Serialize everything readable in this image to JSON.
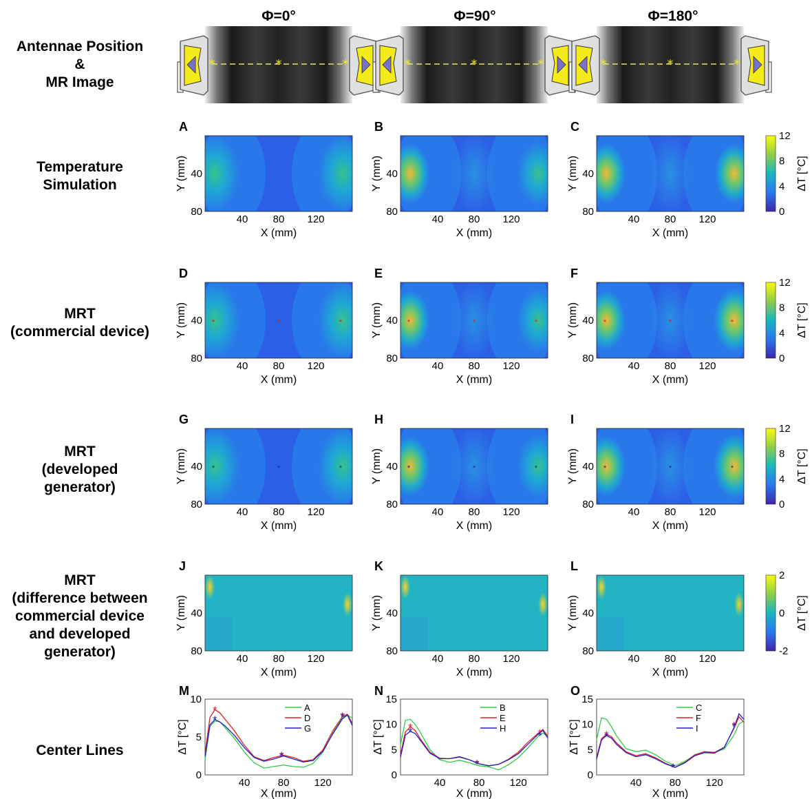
{
  "columns": [
    "Φ=0°",
    "Φ=90°",
    "Φ=180°"
  ],
  "row_labels": [
    [
      "Antennae Position",
      "&",
      "MR Image"
    ],
    [
      "Temperature",
      "Simulation"
    ],
    [
      "MRT",
      "(commercial device)"
    ],
    [
      "MRT",
      "(developed",
      "generator)"
    ],
    [
      "MRT",
      "(difference between",
      "commercial device",
      "and developed",
      "generator)"
    ],
    [
      "Center Lines"
    ]
  ],
  "panel_letters": [
    "A",
    "B",
    "C",
    "D",
    "E",
    "F",
    "G",
    "H",
    "I",
    "J",
    "K",
    "L",
    "M",
    "N",
    "O"
  ],
  "map_axes": {
    "xlabel": "X (mm)",
    "ylabel": "Y (mm)",
    "xticks": [
      "40",
      "80",
      "120"
    ],
    "yticks": [
      "40",
      "80"
    ]
  },
  "colorbars": [
    {
      "ticks": [
        "12",
        "8",
        "4",
        "0"
      ],
      "label": "ΔT [°C]"
    },
    {
      "ticks": [
        "12",
        "8",
        "4",
        "0"
      ],
      "label": "ΔT [°C]"
    },
    {
      "ticks": [
        "12",
        "8",
        "4",
        "0"
      ],
      "label": "ΔT [°C]"
    },
    {
      "ticks": [
        "2",
        "0",
        "-2"
      ],
      "label": "ΔT [°C]"
    }
  ],
  "colors": {
    "sim": "#2ccc4a",
    "commercial": "#e02020",
    "developed": "#2020c8",
    "low": "#3a2ea8",
    "mid": "#27b0b0",
    "high": "#f3e21f"
  },
  "chart_data": [
    {
      "type": "line",
      "xlabel": "X (mm)",
      "ylabel": "ΔT [°C]",
      "xticks": [
        "40",
        "80",
        "120"
      ],
      "yticks": [
        "0",
        "5",
        "10"
      ],
      "ylim": [
        0,
        10
      ],
      "xlim": [
        0,
        150
      ],
      "legend_position": "top-right",
      "series": [
        {
          "name": "A",
          "x": [
            0,
            5,
            10,
            15,
            20,
            30,
            40,
            50,
            60,
            70,
            80,
            90,
            100,
            110,
            120,
            130,
            140,
            145,
            150
          ],
          "y": [
            2.0,
            6.4,
            7.1,
            7.0,
            6.3,
            4.8,
            3.0,
            1.6,
            0.9,
            1.1,
            1.3,
            1.1,
            1.0,
            1.5,
            3.0,
            5.5,
            7.6,
            7.9,
            7.5
          ]
        },
        {
          "name": "D",
          "x": [
            0,
            5,
            10,
            15,
            20,
            30,
            40,
            50,
            60,
            70,
            80,
            90,
            100,
            110,
            120,
            130,
            140,
            145,
            150
          ],
          "y": [
            2.8,
            7.6,
            8.6,
            8.2,
            7.4,
            5.8,
            3.9,
            2.4,
            1.9,
            2.3,
            2.6,
            2.3,
            1.8,
            2.0,
            3.3,
            5.8,
            7.7,
            8.0,
            6.8
          ]
        },
        {
          "name": "G",
          "x": [
            0,
            5,
            10,
            15,
            20,
            30,
            40,
            50,
            60,
            70,
            80,
            90,
            100,
            110,
            120,
            130,
            140,
            145,
            150
          ],
          "y": [
            2.5,
            6.6,
            7.3,
            7.0,
            6.5,
            5.2,
            3.6,
            2.3,
            1.8,
            2.1,
            2.5,
            2.1,
            1.7,
            1.9,
            3.1,
            5.4,
            7.4,
            7.9,
            6.5
          ]
        }
      ],
      "markers": {
        "x": [
          10,
          78,
          140
        ],
        "y_red": [
          8.6,
          2.6,
          7.8
        ],
        "y_blue": [
          7.3,
          2.5,
          7.7
        ]
      }
    },
    {
      "type": "line",
      "xlabel": "X (mm)",
      "ylabel": "ΔT [°C]",
      "xticks": [
        "40",
        "80",
        "120"
      ],
      "yticks": [
        "0",
        "5",
        "10",
        "15"
      ],
      "ylim": [
        0,
        15
      ],
      "xlim": [
        0,
        150
      ],
      "legend_position": "top-right",
      "series": [
        {
          "name": "B",
          "x": [
            0,
            5,
            10,
            15,
            20,
            30,
            40,
            50,
            60,
            70,
            80,
            90,
            100,
            110,
            120,
            130,
            140,
            145,
            150
          ],
          "y": [
            6.0,
            10.8,
            11.0,
            10.0,
            8.5,
            5.0,
            3.0,
            2.5,
            2.9,
            2.4,
            1.8,
            1.6,
            1.0,
            2.0,
            3.4,
            5.4,
            7.6,
            8.3,
            7.6
          ]
        },
        {
          "name": "E",
          "x": [
            0,
            5,
            10,
            15,
            20,
            30,
            40,
            50,
            60,
            70,
            80,
            90,
            100,
            110,
            120,
            130,
            140,
            145,
            150
          ],
          "y": [
            4.0,
            8.5,
            9.5,
            8.8,
            7.2,
            4.5,
            3.3,
            3.2,
            3.5,
            3.0,
            2.2,
            1.8,
            2.1,
            3.1,
            4.5,
            6.5,
            8.2,
            9.0,
            7.7
          ]
        },
        {
          "name": "H",
          "x": [
            0,
            5,
            10,
            15,
            20,
            30,
            40,
            50,
            60,
            70,
            80,
            90,
            100,
            110,
            120,
            130,
            140,
            145,
            150
          ],
          "y": [
            3.5,
            7.9,
            8.6,
            8.2,
            6.9,
            4.3,
            3.2,
            3.2,
            3.6,
            3.0,
            2.2,
            1.8,
            2.1,
            3.0,
            4.2,
            6.1,
            8.0,
            8.8,
            7.3
          ]
        }
      ],
      "markers": {
        "x": [
          10,
          78,
          142
        ],
        "y_red": [
          9.5,
          2.3,
          8.3
        ],
        "y_blue": [
          8.6,
          2.2,
          7.8
        ]
      }
    },
    {
      "type": "line",
      "xlabel": "X (mm)",
      "ylabel": "ΔT [°C]",
      "xticks": [
        "40",
        "80",
        "120"
      ],
      "yticks": [
        "0",
        "5",
        "10",
        "15"
      ],
      "ylim": [
        0,
        15
      ],
      "xlim": [
        0,
        150
      ],
      "legend_position": "top-right",
      "series": [
        {
          "name": "C",
          "x": [
            0,
            5,
            10,
            15,
            20,
            30,
            40,
            50,
            60,
            70,
            80,
            90,
            100,
            110,
            120,
            130,
            140,
            145,
            150
          ],
          "y": [
            7.0,
            11.3,
            11.0,
            9.6,
            7.8,
            5.2,
            4.6,
            4.9,
            4.0,
            2.7,
            1.8,
            2.7,
            3.9,
            4.6,
            4.5,
            5.1,
            7.9,
            10.1,
            10.7
          ]
        },
        {
          "name": "F",
          "x": [
            0,
            5,
            10,
            15,
            20,
            30,
            40,
            50,
            60,
            70,
            80,
            90,
            100,
            110,
            120,
            130,
            140,
            145,
            150
          ],
          "y": [
            3.5,
            7.2,
            8.0,
            7.6,
            6.4,
            4.6,
            3.8,
            4.2,
            3.4,
            2.3,
            1.5,
            2.5,
            4.0,
            4.6,
            4.4,
            5.5,
            9.2,
            11.5,
            10.4
          ]
        },
        {
          "name": "I",
          "x": [
            0,
            5,
            10,
            15,
            20,
            30,
            40,
            50,
            60,
            70,
            80,
            90,
            100,
            110,
            120,
            130,
            140,
            145,
            150
          ],
          "y": [
            3.1,
            6.9,
            7.8,
            7.3,
            6.1,
            4.4,
            3.6,
            4.0,
            3.2,
            2.2,
            1.5,
            2.4,
            3.8,
            4.4,
            4.3,
            5.4,
            9.4,
            12.1,
            11.0
          ]
        }
      ],
      "markers": {
        "x": [
          10,
          78,
          140
        ],
        "y_red": [
          8.0,
          1.6,
          9.8
        ],
        "y_blue": [
          7.7,
          1.5,
          9.6
        ]
      }
    }
  ]
}
